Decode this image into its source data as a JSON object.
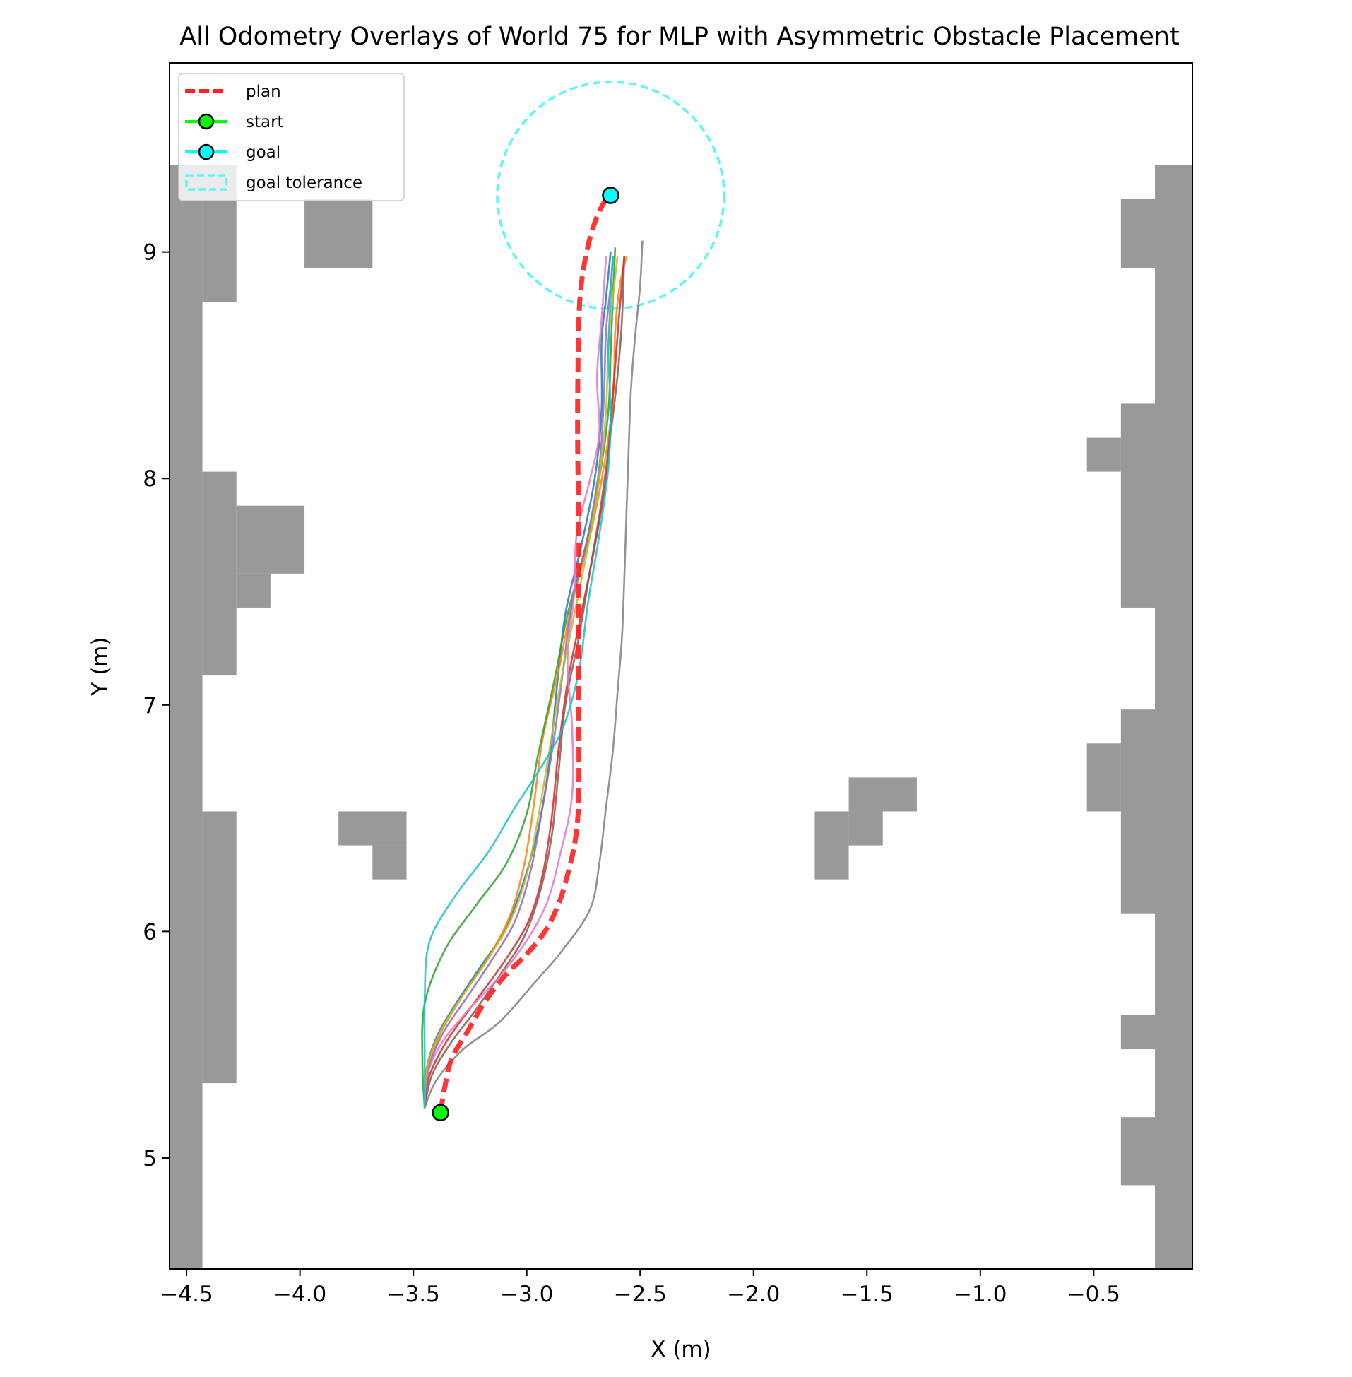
{
  "chart_data": {
    "type": "line",
    "title": "All Odometry Overlays of World 75 for MLP with Asymmetric Obstacle Placement",
    "xlabel": "X (m)",
    "ylabel": "Y (m)",
    "xlim": [
      -4.575,
      -0.065
    ],
    "ylim": [
      4.51,
      9.835
    ],
    "xticks": [
      -4.5,
      -4.0,
      -3.5,
      -3.0,
      -2.5,
      -2.0,
      -1.5,
      -1.0,
      -0.5
    ],
    "xtick_labels": [
      "−4.5",
      "−4.0",
      "−3.5",
      "−3.0",
      "−2.5",
      "−2.0",
      "−1.5",
      "−1.0",
      "−0.5"
    ],
    "yticks": [
      5,
      6,
      7,
      8,
      9
    ],
    "ytick_labels": [
      "5",
      "6",
      "7",
      "8",
      "9"
    ],
    "grid": false,
    "legend_position": "top-left",
    "legend": [
      {
        "label": "plan",
        "kind": "plan"
      },
      {
        "label": "start",
        "kind": "start"
      },
      {
        "label": "goal",
        "kind": "goal"
      },
      {
        "label": "goal tolerance",
        "kind": "tolerance"
      }
    ],
    "colors": {
      "plan": "#ff2020",
      "start": "#00ff00",
      "goal": "#00ffff",
      "tolerance": "#5ef7f7",
      "obstacle": "#999999"
    },
    "start": {
      "x": -3.38,
      "y": 5.2
    },
    "goal": {
      "x": -2.63,
      "y": 9.25
    },
    "goal_tolerance_radius": 0.5,
    "plan": [
      [
        -3.38,
        5.2
      ],
      [
        -3.36,
        5.32
      ],
      [
        -3.33,
        5.44
      ],
      [
        -3.26,
        5.56
      ],
      [
        -3.19,
        5.68
      ],
      [
        -3.1,
        5.8
      ],
      [
        -3.0,
        5.9
      ],
      [
        -2.92,
        6.0
      ],
      [
        -2.86,
        6.12
      ],
      [
        -2.82,
        6.25
      ],
      [
        -2.79,
        6.38
      ],
      [
        -2.775,
        6.5
      ],
      [
        -2.77,
        6.65
      ],
      [
        -2.77,
        6.9
      ],
      [
        -2.77,
        7.2
      ],
      [
        -2.77,
        7.5
      ],
      [
        -2.77,
        7.8
      ],
      [
        -2.775,
        8.1
      ],
      [
        -2.775,
        8.4
      ],
      [
        -2.77,
        8.7
      ],
      [
        -2.76,
        8.85
      ],
      [
        -2.74,
        8.98
      ],
      [
        -2.71,
        9.1
      ],
      [
        -2.67,
        9.2
      ],
      [
        -2.63,
        9.25
      ]
    ],
    "obstacles": [
      [
        -4.575,
        -4.43,
        4.51,
        9.385
      ],
      [
        -4.43,
        -4.28,
        8.78,
        9.385
      ],
      [
        -4.43,
        -4.28,
        7.13,
        8.03
      ],
      [
        -4.28,
        -3.98,
        7.58,
        7.88
      ],
      [
        -4.28,
        -4.13,
        7.43,
        7.58
      ],
      [
        -4.43,
        -4.28,
        5.33,
        6.53
      ],
      [
        -3.98,
        -3.68,
        8.93,
        9.235
      ],
      [
        -3.83,
        -3.53,
        6.38,
        6.53
      ],
      [
        -3.68,
        -3.53,
        6.23,
        6.38
      ],
      [
        -1.73,
        -1.58,
        6.23,
        6.53
      ],
      [
        -1.58,
        -1.43,
        6.38,
        6.53
      ],
      [
        -1.58,
        -1.28,
        6.53,
        6.68
      ],
      [
        -0.23,
        -0.065,
        4.51,
        9.385
      ],
      [
        -0.38,
        -0.23,
        8.93,
        9.235
      ],
      [
        -0.38,
        -0.23,
        7.43,
        8.33
      ],
      [
        -0.53,
        -0.38,
        8.03,
        8.18
      ],
      [
        -0.38,
        -0.23,
        6.08,
        6.98
      ],
      [
        -0.53,
        -0.38,
        6.53,
        6.83
      ],
      [
        -0.38,
        -0.23,
        5.48,
        5.63
      ],
      [
        -0.38,
        -0.23,
        4.88,
        5.18
      ]
    ],
    "series": [
      {
        "color": "#1f77b4",
        "points": [
          [
            -3.45,
            5.22
          ],
          [
            -3.44,
            5.4
          ],
          [
            -3.39,
            5.55
          ],
          [
            -3.3,
            5.7
          ],
          [
            -3.2,
            5.85
          ],
          [
            -3.1,
            6.0
          ],
          [
            -3.02,
            6.2
          ],
          [
            -2.95,
            6.45
          ],
          [
            -2.9,
            6.75
          ],
          [
            -2.87,
            7.05
          ],
          [
            -2.83,
            7.4
          ],
          [
            -2.76,
            7.7
          ],
          [
            -2.7,
            8.0
          ],
          [
            -2.67,
            8.3
          ],
          [
            -2.67,
            8.6
          ],
          [
            -2.65,
            8.8
          ],
          [
            -2.63,
            9.0
          ]
        ]
      },
      {
        "color": "#ff7f0e",
        "points": [
          [
            -3.45,
            5.22
          ],
          [
            -3.44,
            5.38
          ],
          [
            -3.38,
            5.55
          ],
          [
            -3.28,
            5.72
          ],
          [
            -3.16,
            5.9
          ],
          [
            -3.07,
            6.08
          ],
          [
            -3.01,
            6.3
          ],
          [
            -2.97,
            6.55
          ],
          [
            -2.93,
            6.85
          ],
          [
            -2.86,
            7.15
          ],
          [
            -2.8,
            7.45
          ],
          [
            -2.72,
            7.75
          ],
          [
            -2.66,
            8.05
          ],
          [
            -2.62,
            8.35
          ],
          [
            -2.61,
            8.65
          ],
          [
            -2.59,
            8.85
          ],
          [
            -2.56,
            8.98
          ]
        ]
      },
      {
        "color": "#2ca02c",
        "points": [
          [
            -3.45,
            5.22
          ],
          [
            -3.46,
            5.42
          ],
          [
            -3.45,
            5.68
          ],
          [
            -3.36,
            5.92
          ],
          [
            -3.22,
            6.12
          ],
          [
            -3.09,
            6.3
          ],
          [
            -3.0,
            6.52
          ],
          [
            -2.95,
            6.78
          ],
          [
            -2.88,
            7.1
          ],
          [
            -2.82,
            7.4
          ],
          [
            -2.74,
            7.7
          ],
          [
            -2.68,
            8.0
          ],
          [
            -2.64,
            8.3
          ],
          [
            -2.63,
            8.55
          ],
          [
            -2.62,
            8.8
          ],
          [
            -2.61,
            9.02
          ]
        ]
      },
      {
        "color": "#d62728",
        "points": [
          [
            -3.45,
            5.22
          ],
          [
            -3.43,
            5.36
          ],
          [
            -3.35,
            5.52
          ],
          [
            -3.22,
            5.7
          ],
          [
            -3.09,
            5.88
          ],
          [
            -2.99,
            6.05
          ],
          [
            -2.93,
            6.25
          ],
          [
            -2.89,
            6.5
          ],
          [
            -2.86,
            6.8
          ],
          [
            -2.82,
            7.1
          ],
          [
            -2.76,
            7.4
          ],
          [
            -2.7,
            7.7
          ],
          [
            -2.65,
            8.0
          ],
          [
            -2.63,
            8.25
          ],
          [
            -2.61,
            8.5
          ],
          [
            -2.59,
            8.75
          ],
          [
            -2.57,
            8.98
          ]
        ]
      },
      {
        "color": "#9467bd",
        "points": [
          [
            -3.45,
            5.22
          ],
          [
            -3.43,
            5.4
          ],
          [
            -3.37,
            5.55
          ],
          [
            -3.27,
            5.7
          ],
          [
            -3.15,
            5.88
          ],
          [
            -3.05,
            6.05
          ],
          [
            -2.98,
            6.28
          ],
          [
            -2.93,
            6.55
          ],
          [
            -2.88,
            6.85
          ],
          [
            -2.84,
            7.15
          ],
          [
            -2.8,
            7.45
          ],
          [
            -2.73,
            7.75
          ],
          [
            -2.68,
            8.05
          ],
          [
            -2.66,
            8.35
          ],
          [
            -2.65,
            8.65
          ],
          [
            -2.63,
            8.85
          ],
          [
            -2.62,
            8.98
          ]
        ]
      },
      {
        "color": "#8c564b",
        "points": [
          [
            -3.45,
            5.22
          ],
          [
            -3.42,
            5.36
          ],
          [
            -3.34,
            5.5
          ],
          [
            -3.22,
            5.66
          ],
          [
            -3.11,
            5.82
          ],
          [
            -3.01,
            5.98
          ],
          [
            -2.94,
            6.18
          ],
          [
            -2.89,
            6.42
          ],
          [
            -2.86,
            6.7
          ],
          [
            -2.83,
            7.0
          ],
          [
            -2.77,
            7.3
          ],
          [
            -2.72,
            7.6
          ],
          [
            -2.67,
            7.9
          ],
          [
            -2.63,
            8.2
          ],
          [
            -2.6,
            8.45
          ],
          [
            -2.58,
            8.7
          ],
          [
            -2.57,
            8.98
          ]
        ]
      },
      {
        "color": "#e377c2",
        "points": [
          [
            -3.45,
            5.22
          ],
          [
            -3.44,
            5.36
          ],
          [
            -3.38,
            5.5
          ],
          [
            -3.26,
            5.65
          ],
          [
            -3.12,
            5.8
          ],
          [
            -3.0,
            5.96
          ],
          [
            -2.91,
            6.13
          ],
          [
            -2.85,
            6.35
          ],
          [
            -2.8,
            6.6
          ],
          [
            -2.8,
            6.9
          ],
          [
            -2.82,
            7.2
          ],
          [
            -2.79,
            7.5
          ],
          [
            -2.78,
            7.75
          ],
          [
            -2.72,
            8.0
          ],
          [
            -2.68,
            8.2
          ],
          [
            -2.69,
            8.45
          ],
          [
            -2.67,
            8.7
          ],
          [
            -2.65,
            8.98
          ]
        ]
      },
      {
        "color": "#7f7f7f",
        "points": [
          [
            -3.45,
            5.22
          ],
          [
            -3.4,
            5.34
          ],
          [
            -3.28,
            5.48
          ],
          [
            -3.12,
            5.6
          ],
          [
            -2.96,
            5.78
          ],
          [
            -2.84,
            5.92
          ],
          [
            -2.72,
            6.1
          ],
          [
            -2.68,
            6.3
          ],
          [
            -2.65,
            6.55
          ],
          [
            -2.62,
            6.8
          ],
          [
            -2.6,
            7.05
          ],
          [
            -2.58,
            7.3
          ],
          [
            -2.57,
            7.55
          ],
          [
            -2.56,
            7.85
          ],
          [
            -2.55,
            8.15
          ],
          [
            -2.54,
            8.4
          ],
          [
            -2.52,
            8.65
          ],
          [
            -2.5,
            8.85
          ],
          [
            -2.49,
            9.05
          ]
        ]
      },
      {
        "color": "#bcbd22",
        "points": [
          [
            -3.45,
            5.22
          ],
          [
            -3.44,
            5.4
          ],
          [
            -3.38,
            5.56
          ],
          [
            -3.28,
            5.72
          ],
          [
            -3.17,
            5.88
          ],
          [
            -3.07,
            6.05
          ],
          [
            -3.0,
            6.25
          ],
          [
            -2.95,
            6.5
          ],
          [
            -2.9,
            6.8
          ],
          [
            -2.85,
            7.1
          ],
          [
            -2.79,
            7.4
          ],
          [
            -2.73,
            7.7
          ],
          [
            -2.68,
            8.0
          ],
          [
            -2.65,
            8.3
          ],
          [
            -2.64,
            8.6
          ],
          [
            -2.62,
            8.8
          ],
          [
            -2.6,
            8.98
          ]
        ]
      },
      {
        "color": "#17becf",
        "points": [
          [
            -3.45,
            5.22
          ],
          [
            -3.45,
            5.45
          ],
          [
            -3.45,
            5.7
          ],
          [
            -3.43,
            5.95
          ],
          [
            -3.32,
            6.15
          ],
          [
            -3.17,
            6.35
          ],
          [
            -3.05,
            6.55
          ],
          [
            -2.94,
            6.72
          ],
          [
            -2.84,
            6.9
          ],
          [
            -2.77,
            7.15
          ],
          [
            -2.73,
            7.45
          ],
          [
            -2.68,
            7.75
          ],
          [
            -2.64,
            8.05
          ],
          [
            -2.63,
            8.3
          ],
          [
            -2.64,
            8.55
          ],
          [
            -2.63,
            8.8
          ],
          [
            -2.62,
            8.98
          ]
        ]
      }
    ]
  }
}
